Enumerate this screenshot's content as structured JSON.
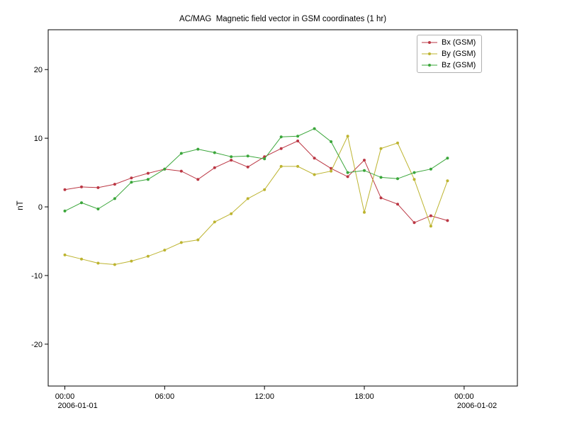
{
  "chart_data": {
    "type": "line",
    "title": "AC/MAG  Magnetic field vector in GSM coordinates (1 hr)",
    "xlabel": "",
    "ylabel": "nT",
    "grid": false,
    "legend_position": "top-right",
    "x_hours": [
      0,
      1,
      2,
      3,
      4,
      5,
      6,
      7,
      8,
      9,
      10,
      11,
      12,
      13,
      14,
      15,
      16,
      17,
      18,
      19,
      20,
      21,
      22,
      23
    ],
    "series": [
      {
        "name": "Bx (GSM)",
        "color": "#bb3744",
        "values": [
          2.5,
          2.9,
          2.8,
          3.3,
          4.2,
          4.9,
          5.5,
          5.2,
          4.0,
          5.7,
          6.8,
          5.8,
          7.3,
          8.5,
          9.6,
          7.1,
          5.6,
          4.4,
          6.8,
          1.3,
          0.4,
          -2.3,
          -1.3,
          -2.0
        ]
      },
      {
        "name": "By (GSM)",
        "color": "#bdb430",
        "values": [
          -7.0,
          -7.6,
          -8.2,
          -8.4,
          -7.9,
          -7.2,
          -6.3,
          -5.2,
          -4.8,
          -2.2,
          -1.0,
          1.2,
          2.5,
          5.9,
          5.9,
          4.7,
          5.2,
          10.3,
          -0.8,
          8.5,
          9.3,
          4.0,
          -2.8,
          3.8
        ]
      },
      {
        "name": "Bz (GSM)",
        "color": "#3aa63a",
        "values": [
          -0.6,
          0.6,
          -0.3,
          1.2,
          3.6,
          4.0,
          5.5,
          7.8,
          8.4,
          7.9,
          7.3,
          7.4,
          7.0,
          10.2,
          10.3,
          11.4,
          9.5,
          5.0,
          5.3,
          4.3,
          4.1,
          5.0,
          5.5,
          7.1
        ]
      }
    ],
    "xticks": [
      {
        "hour": 0,
        "label": "00:00",
        "sublabel": "2006-01-01"
      },
      {
        "hour": 6,
        "label": "06:00",
        "sublabel": ""
      },
      {
        "hour": 12,
        "label": "12:00",
        "sublabel": ""
      },
      {
        "hour": 18,
        "label": "18:00",
        "sublabel": ""
      },
      {
        "hour": 24,
        "label": "00:00",
        "sublabel": "2006-01-02"
      }
    ],
    "yticks": [
      -20,
      -10,
      0,
      10,
      20
    ],
    "ylim": [
      -26.1,
      25.8
    ],
    "xlim_hours": [
      -1.0,
      27.2
    ],
    "axis_color": "#000000",
    "background_color": "#ffffff"
  }
}
